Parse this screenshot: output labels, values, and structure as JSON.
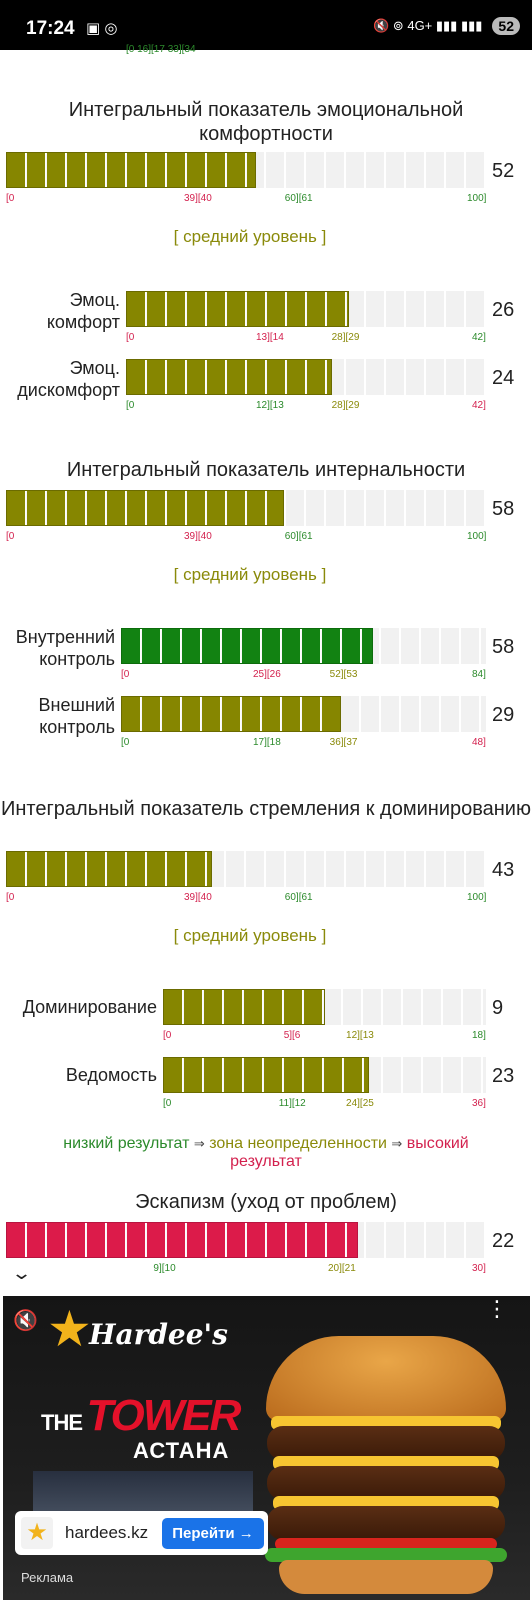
{
  "status_bar": {
    "time": "17:24",
    "left_icons": "▣ ◎",
    "right_icons": "🔇 ⊚ 4G+ ▮▮▮ ▮▮▮",
    "battery": "52"
  },
  "cut_scale_top": "[0       16][17            33][34",
  "sections": [
    {
      "title": "Интегральный показатель эмоциональной комфортности",
      "bar": {
        "value": 52,
        "fill": 0.52,
        "color": "olive",
        "scale": [
          [
            "[0",
            "red"
          ],
          [
            "39][40",
            "red"
          ],
          [
            "60][61",
            "green"
          ],
          [
            "100]",
            "green"
          ]
        ]
      },
      "level": "[ средний уровень ]"
    },
    {
      "title": "Интегральный показатель интернальности",
      "bar": {
        "value": 58,
        "fill": 0.58,
        "color": "olive",
        "scale": [
          [
            "[0",
            "red"
          ],
          [
            "39][40",
            "red"
          ],
          [
            "60][61",
            "green"
          ],
          [
            "100]",
            "green"
          ]
        ]
      },
      "level": "[ средний уровень ]"
    },
    {
      "title": "Интегральный показатель стремления к доминированию",
      "bar": {
        "value": 43,
        "fill": 0.43,
        "color": "olive",
        "scale": [
          [
            "[0",
            "red"
          ],
          [
            "39][40",
            "red"
          ],
          [
            "60][61",
            "green"
          ],
          [
            "100]",
            "green"
          ]
        ]
      },
      "level": "[ средний уровень ]"
    },
    {
      "title": "Эскапизм (уход от проблем)",
      "bar": {
        "value": 22,
        "fill": 0.733,
        "color": "red",
        "scale": [
          [
            "9][10",
            "green"
          ],
          [
            "20][21",
            "olive"
          ],
          [
            "30]",
            "red"
          ]
        ]
      }
    }
  ],
  "subscales": [
    {
      "label_1": "Эмоц.",
      "label_2": "комфорт",
      "value": 26,
      "fill": 0.619,
      "color": "olive",
      "scale": [
        [
          "[0",
          "red"
        ],
        [
          "13][14",
          "red"
        ],
        [
          "28][29",
          "olive"
        ],
        [
          "42]",
          "green"
        ]
      ]
    },
    {
      "label_1": "Эмоц.",
      "label_2": "дискомфорт",
      "value": 24,
      "fill": 0.571,
      "color": "olive",
      "scale": [
        [
          "[0",
          "green"
        ],
        [
          "12][13",
          "green"
        ],
        [
          "28][29",
          "olive"
        ],
        [
          "42]",
          "red"
        ]
      ]
    },
    {
      "label_1": "Внутренний",
      "label_2": "контроль",
      "value": 58,
      "fill": 0.69,
      "color": "green",
      "scale": [
        [
          "[0",
          "red"
        ],
        [
          "25][26",
          "red"
        ],
        [
          "52][53",
          "olive"
        ],
        [
          "84]",
          "green"
        ]
      ]
    },
    {
      "label_1": "Внешний",
      "label_2": "контроль",
      "value": 29,
      "fill": 0.604,
      "color": "olive",
      "scale": [
        [
          "[0",
          "green"
        ],
        [
          "17][18",
          "green"
        ],
        [
          "36][37",
          "olive"
        ],
        [
          "48]",
          "red"
        ]
      ]
    },
    {
      "label_1": "Доминирование",
      "label_2": "",
      "value": 9,
      "fill": 0.5,
      "color": "olive",
      "scale": [
        [
          "[0",
          "red"
        ],
        [
          "5][6",
          "red"
        ],
        [
          "12][13",
          "olive"
        ],
        [
          "18]",
          "green"
        ]
      ]
    },
    {
      "label_1": "Ведомость",
      "label_2": "",
      "value": 23,
      "fill": 0.639,
      "color": "olive",
      "scale": [
        [
          "[0",
          "green"
        ],
        [
          "11][12",
          "green"
        ],
        [
          "24][25",
          "olive"
        ],
        [
          "36]",
          "red"
        ]
      ]
    }
  ],
  "legend": {
    "low": "низкий результат",
    "arrow": "⇒",
    "mid": "зона неопределенности",
    "high_1": "высокий",
    "high_2": "результат"
  },
  "collapse_icon": "chevron-down",
  "ad": {
    "brand": "Hardee's",
    "the": "THE",
    "tower": "TOWER",
    "city": "АСТАНА",
    "domain": "hardees.kz",
    "cta": "Перейти →",
    "tag": "Реклама",
    "more_icon": "⋮",
    "mute_icon": "🔇"
  },
  "colors": {
    "olive": "#868600",
    "green": "#128212",
    "red": "#dc1b4a",
    "level_text": "#8a8a0a",
    "cta": "#1a73e8"
  }
}
